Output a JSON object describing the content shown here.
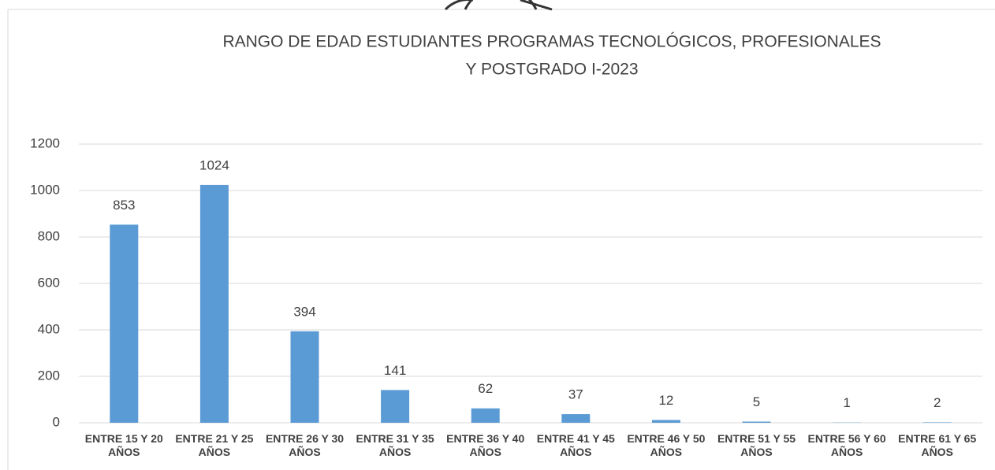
{
  "chart_data": {
    "type": "bar",
    "title": [
      "RANGO DE EDAD ESTUDIANTES PROGRAMAS TECNOLÓGICOS, PROFESIONALES",
      "Y POSTGRADO I-2023"
    ],
    "categories": [
      "ENTRE 15 Y 20 AÑOS",
      "ENTRE 21 Y 25 AÑOS",
      "ENTRE 26 Y 30 AÑOS",
      "ENTRE 31 Y 35 AÑOS",
      "ENTRE 36 Y 40 AÑOS",
      "ENTRE 41 Y 45 AÑOS",
      "ENTRE 46 Y 50 AÑOS",
      "ENTRE 51 Y 55 AÑOS",
      "ENTRE 56 Y 60 AÑOS",
      "ENTRE 61 Y 65 AÑOS"
    ],
    "values": [
      853,
      1024,
      394,
      141,
      62,
      37,
      12,
      5,
      1,
      2
    ],
    "color": "#5b9bd5",
    "ylim": [
      0,
      1200
    ],
    "yticks": [
      0,
      200,
      400,
      600,
      800,
      1000,
      1200
    ],
    "grid": true
  }
}
